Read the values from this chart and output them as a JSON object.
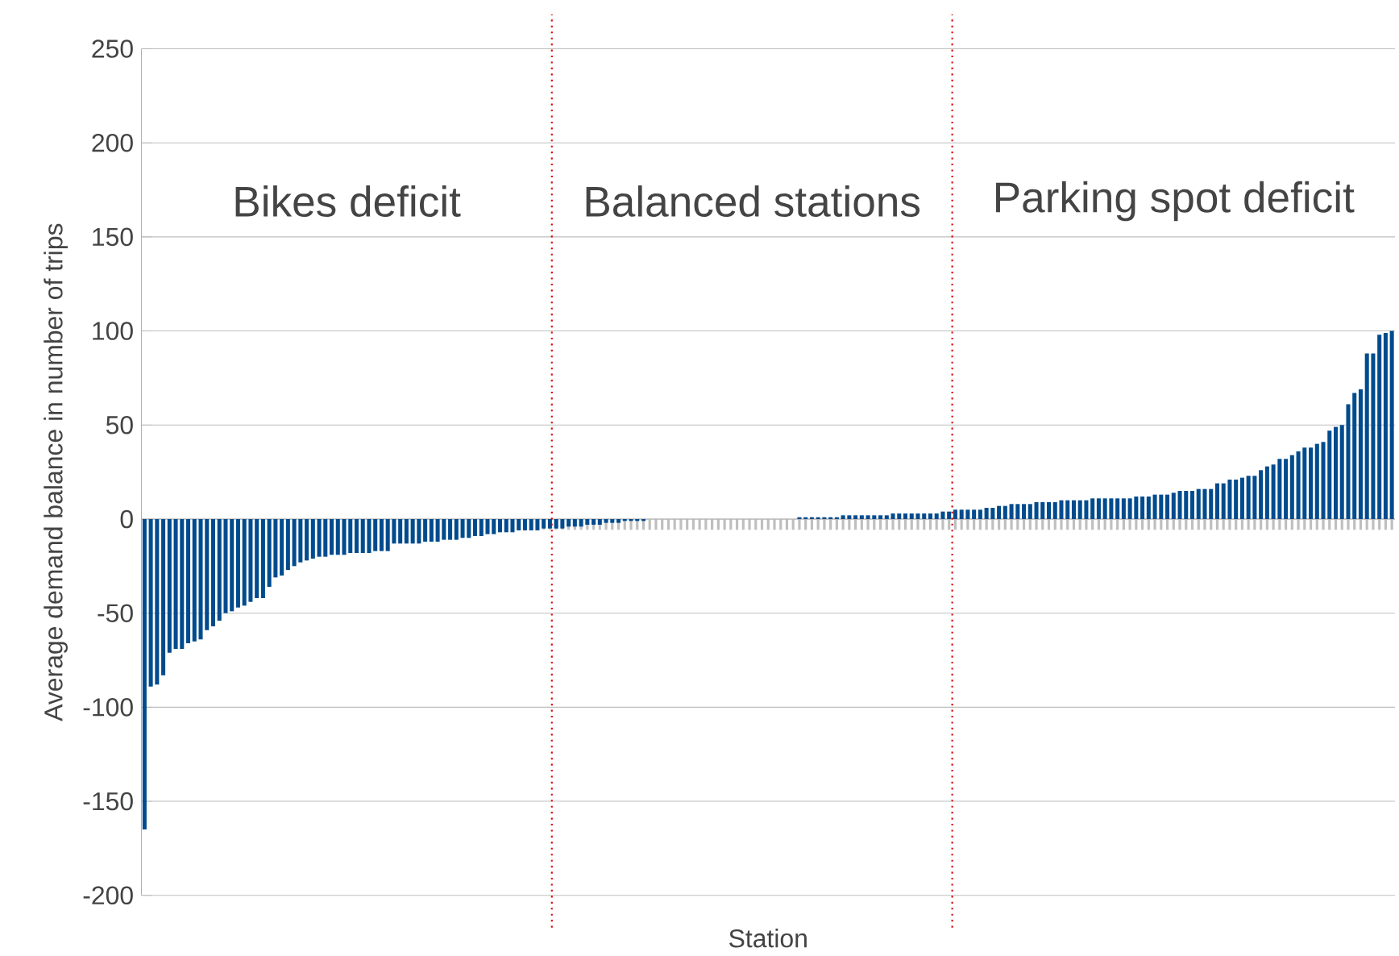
{
  "chart_data": {
    "type": "bar",
    "xlabel": "Station",
    "ylabel": "Average demand balance in number of trips",
    "categories": [
      null,
      null,
      null,
      null,
      null,
      null,
      null,
      null,
      null,
      null,
      null,
      null,
      null,
      null,
      null,
      null,
      null,
      null,
      null,
      null,
      null,
      null,
      null,
      null,
      null,
      null,
      null,
      null,
      null,
      null,
      null,
      null,
      null,
      null,
      null,
      null,
      null,
      null,
      null,
      null,
      null,
      null,
      null,
      null,
      null,
      null,
      null,
      null,
      null,
      null,
      null,
      null,
      null,
      null,
      null,
      null,
      null,
      null,
      null,
      null,
      null,
      null,
      null,
      null,
      null,
      null,
      null,
      null,
      null,
      null,
      null,
      null,
      null,
      null,
      null,
      null,
      null,
      null,
      null,
      null,
      null,
      null,
      null,
      null,
      null,
      null,
      null,
      null,
      null,
      null,
      null,
      null,
      null,
      null,
      null,
      null,
      null,
      null,
      null,
      null,
      null,
      null,
      null,
      null,
      null,
      null,
      null,
      null,
      null,
      null,
      null,
      null,
      null,
      null,
      null,
      null,
      null,
      null,
      null,
      null,
      null,
      null,
      null,
      null,
      null,
      null,
      null,
      null,
      null,
      null,
      null,
      null,
      null,
      null,
      null,
      null,
      null,
      null,
      null,
      null,
      null,
      null,
      null,
      null,
      null,
      null,
      null,
      null,
      null,
      null,
      null,
      null,
      null,
      null,
      null,
      null,
      null,
      null,
      null,
      null,
      null,
      null,
      null,
      null,
      null,
      null,
      null,
      null,
      null,
      null,
      null,
      null,
      null,
      null,
      null,
      null,
      null,
      null,
      null,
      null,
      null,
      null,
      null,
      null,
      null,
      null,
      null,
      null,
      null,
      null,
      null,
      null,
      null,
      null,
      null,
      null,
      null,
      null,
      null,
      null,
      null
    ],
    "values": [
      -165,
      -89,
      -88,
      -83,
      -71,
      -69,
      -69,
      -66,
      -65,
      -64,
      -59,
      -57,
      -54,
      -50,
      -49,
      -47,
      -46,
      -44,
      -42,
      -42,
      -36,
      -31,
      -30,
      -27,
      -25,
      -23,
      -22,
      -21,
      -20,
      -20,
      -19,
      -19,
      -19,
      -18,
      -18,
      -18,
      -18,
      -17,
      -17,
      -17,
      -13,
      -13,
      -13,
      -13,
      -13,
      -12,
      -12,
      -12,
      -11,
      -11,
      -11,
      -10,
      -10,
      -9,
      -9,
      -8,
      -8,
      -7,
      -7,
      -7,
      -6,
      -6,
      -6,
      -6,
      -5,
      -5,
      -5,
      -5,
      -4,
      -4,
      -4,
      -3,
      -3,
      -3,
      -2,
      -2,
      -2,
      -1,
      -1,
      -1,
      -1,
      0,
      0,
      0,
      0,
      0,
      0,
      0,
      0,
      0,
      0,
      0,
      0,
      0,
      0,
      0,
      0,
      0,
      0,
      0,
      0,
      0,
      0,
      0,
      0,
      1,
      1,
      1,
      1,
      1,
      1,
      1,
      2,
      2,
      2,
      2,
      2,
      2,
      2,
      2,
      3,
      3,
      3,
      3,
      3,
      3,
      3,
      3,
      4,
      4,
      5,
      5,
      5,
      5,
      5,
      6,
      6,
      7,
      7,
      8,
      8,
      8,
      8,
      9,
      9,
      9,
      9,
      10,
      10,
      10,
      10,
      10,
      11,
      11,
      11,
      11,
      11,
      11,
      11,
      12,
      12,
      12,
      13,
      13,
      13,
      14,
      15,
      15,
      15,
      16,
      16,
      16,
      19,
      19,
      21,
      21,
      22,
      23,
      23,
      26,
      28,
      29,
      32,
      32,
      34,
      36,
      38,
      38,
      40,
      41,
      47,
      49,
      50,
      61,
      67,
      69,
      88,
      88,
      98,
      99,
      100
    ],
    "color": "#004b8d",
    "ylim": [
      -200,
      250
    ],
    "yticks": [
      -200,
      -150,
      -100,
      -50,
      0,
      50,
      100,
      150,
      200,
      250
    ],
    "grid": "y",
    "annotations": [
      "Bikes deficit",
      "Balanced stations",
      "Parking spot deficit"
    ]
  }
}
